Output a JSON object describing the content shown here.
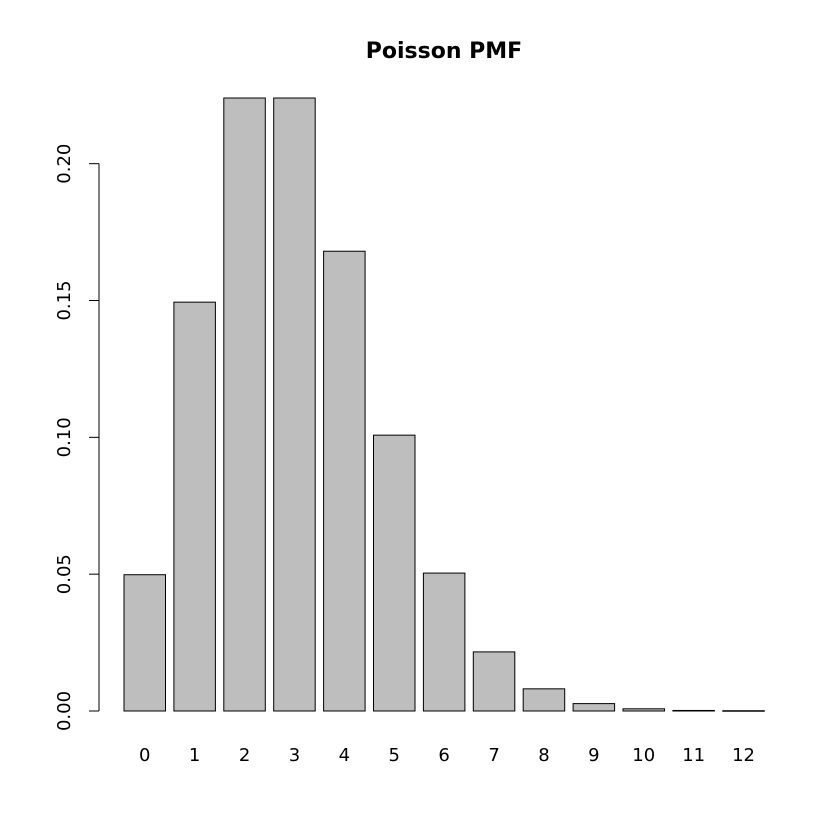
{
  "chart_data": {
    "type": "bar",
    "title": "Poisson PMF",
    "xlabel": "",
    "ylabel": "",
    "categories": [
      "0",
      "1",
      "2",
      "3",
      "4",
      "5",
      "6",
      "7",
      "8",
      "9",
      "10",
      "11",
      "12"
    ],
    "values": [
      0.0498,
      0.1494,
      0.224,
      0.224,
      0.168,
      0.1008,
      0.0504,
      0.0216,
      0.0081,
      0.0027,
      0.0008,
      0.0002,
      0.0001
    ],
    "ylim": [
      0,
      0.224
    ],
    "yticks": [
      0.0,
      0.05,
      0.1,
      0.15,
      0.2
    ],
    "ytick_labels": [
      "0.00",
      "0.05",
      "0.10",
      "0.15",
      "0.20"
    ],
    "grid": false,
    "legend": "none",
    "bar_color": "#bebebe",
    "outline_color": "#000000"
  }
}
